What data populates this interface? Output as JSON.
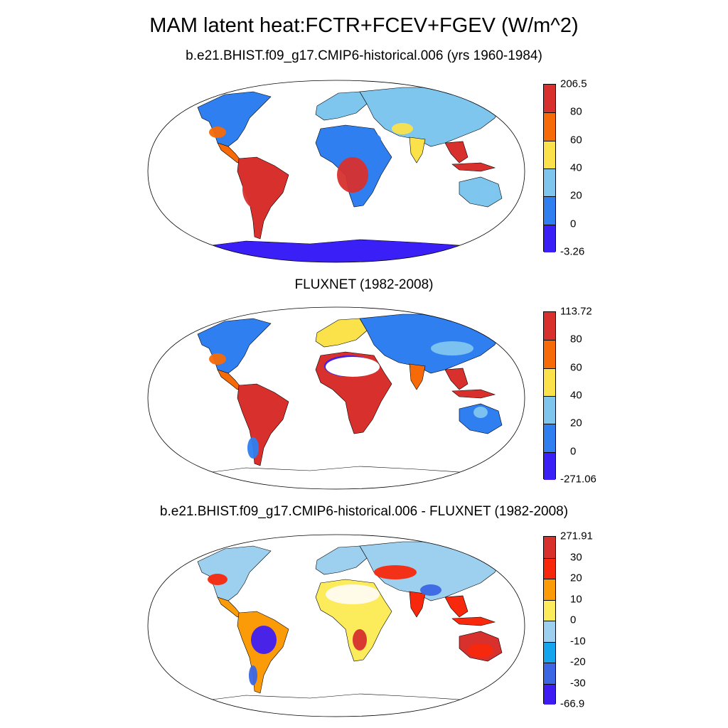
{
  "title": "MAM latent heat:FCTR+FCEV+FGEV (W/m^2)",
  "panels": [
    {
      "title": "b.e21.BHIST.f09_g17.CMIP6-historical.006 (yrs 1960-1984)",
      "colorbar": {
        "labels": [
          "206.5",
          "80",
          "60",
          "40",
          "20",
          "0",
          "-3.26"
        ],
        "colors": [
          "#d7302d",
          "#f76a08",
          "#fbe14a",
          "#7fc6ef",
          "#2f7ff0",
          "#3a1ff7"
        ]
      }
    },
    {
      "title": "FLUXNET (1982-2008)",
      "colorbar": {
        "labels": [
          "113.72",
          "80",
          "60",
          "40",
          "20",
          "0",
          "-271.06"
        ],
        "colors": [
          "#d7302d",
          "#f76a08",
          "#fbe14a",
          "#7fc6ef",
          "#2f7ff0",
          "#3a1ff7"
        ]
      }
    },
    {
      "title": "b.e21.BHIST.f09_g17.CMIP6-historical.006 - FLUXNET (1982-2008)",
      "colorbar": {
        "labels": [
          "271.91",
          "30",
          "20",
          "10",
          "0",
          "-10",
          "-20",
          "-30",
          "-66.9"
        ],
        "colors": [
          "#d7302d",
          "#f8280d",
          "#fb9b07",
          "#fcec5c",
          "#9dcfee",
          "#14a5ee",
          "#3b66e4",
          "#3f1cf4"
        ]
      }
    }
  ]
}
